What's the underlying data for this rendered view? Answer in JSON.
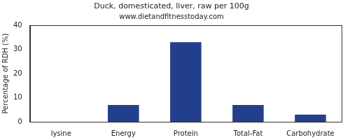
{
  "chart_data": {
    "type": "bar",
    "title": "Duck, domesticated, liver, raw per 100g",
    "subtitle": "www.dietandfitnesstoday.com",
    "y_label": "Percentage of RDH (%)",
    "categories": [
      "lysine",
      "Energy",
      "Protein",
      "Total-Fat",
      "Carbohydrate"
    ],
    "values": [
      0,
      7,
      33,
      7,
      3
    ],
    "color": "#233f8c",
    "ylim": [
      0,
      40
    ],
    "yticks": [
      0,
      10,
      20,
      30,
      40
    ],
    "grid": false
  }
}
